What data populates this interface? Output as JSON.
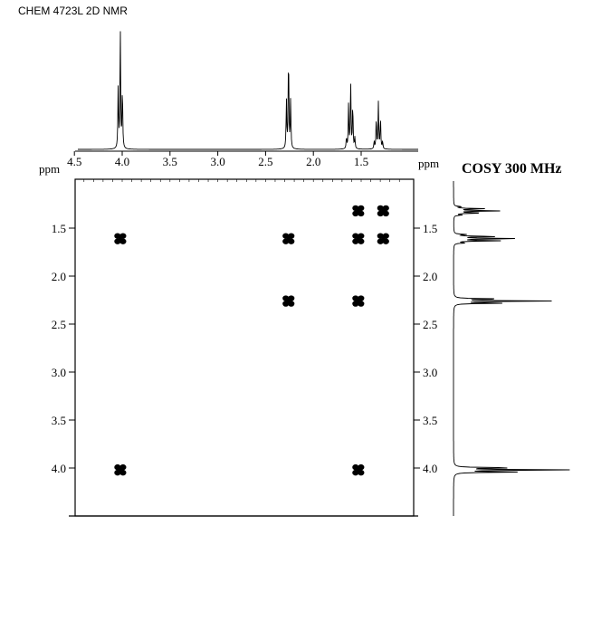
{
  "header": {
    "title": "CHEM 4723L 2D NMR"
  },
  "chart_data": {
    "type": "scatter",
    "title": "COSY 300 MHz",
    "unit_label": "ppm",
    "x_axis": {
      "ticks": [
        4.5,
        4.0,
        3.5,
        3.0,
        2.5,
        2.0,
        1.5
      ],
      "tick_labels": [
        "4.5",
        "4.0",
        "3.5",
        "3.0",
        "2.5",
        "2.0",
        "1.5"
      ],
      "range": [
        4.5,
        1.0
      ],
      "reversed": true
    },
    "y_axis": {
      "ticks": [
        1.5,
        2.0,
        2.5,
        3.0,
        3.5,
        4.0
      ],
      "tick_labels_left": [
        "1.5",
        "2.0",
        "2.5",
        "3.0",
        "3.5",
        "4.0"
      ],
      "tick_labels_right": [
        "1.5",
        "2.0",
        "2.5",
        "3.0",
        "3.5",
        "4.0"
      ],
      "range": [
        1.0,
        4.5
      ]
    },
    "cross_peaks": [
      {
        "x": 1.53,
        "y": 1.32
      },
      {
        "x": 1.27,
        "y": 1.32
      },
      {
        "x": 4.02,
        "y": 1.61
      },
      {
        "x": 2.26,
        "y": 1.61
      },
      {
        "x": 1.53,
        "y": 1.61
      },
      {
        "x": 1.27,
        "y": 1.61
      },
      {
        "x": 2.26,
        "y": 2.26
      },
      {
        "x": 1.53,
        "y": 2.26
      },
      {
        "x": 4.02,
        "y": 4.02
      },
      {
        "x": 1.53,
        "y": 4.02
      }
    ],
    "projection_peaks": [
      {
        "shift": 4.02,
        "intensity": 1.0,
        "multiplicity": 3
      },
      {
        "shift": 2.26,
        "intensity": 0.8,
        "multiplicity": 3
      },
      {
        "shift": 1.61,
        "intensity": 0.55,
        "multiplicity": 5
      },
      {
        "shift": 1.32,
        "intensity": 0.38,
        "multiplicity": 5
      }
    ],
    "grid": false
  }
}
